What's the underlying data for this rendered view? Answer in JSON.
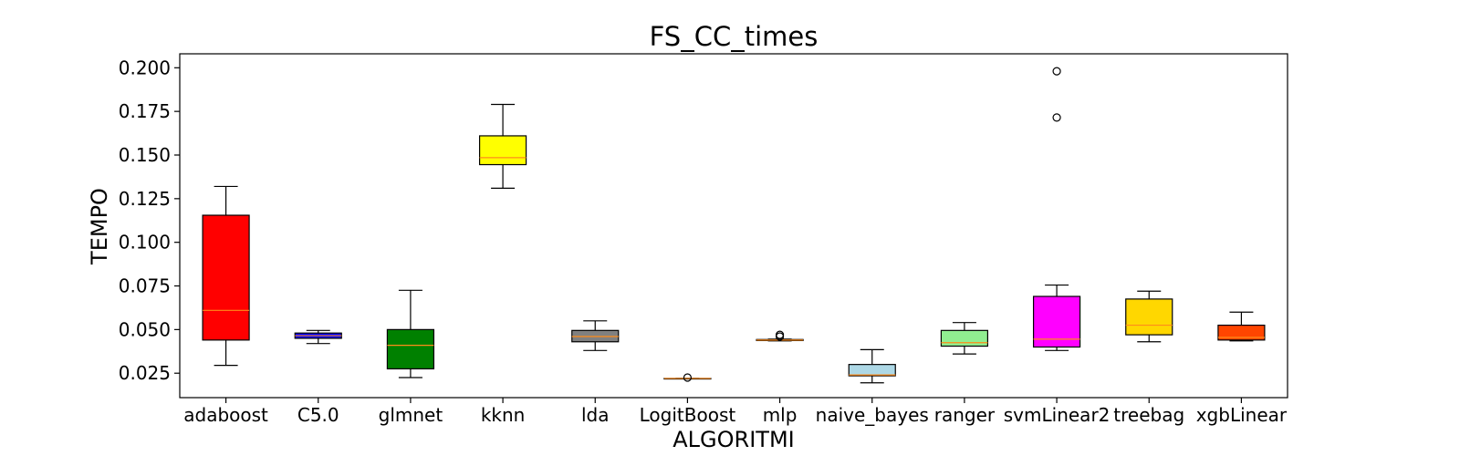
{
  "chart_data": {
    "type": "boxplot",
    "title": "FS_CC_times",
    "xlabel": "ALGORITMI",
    "ylabel": "TEMPO",
    "ylim": [
      0.011,
      0.208
    ],
    "yticks": [
      "0.025",
      "0.050",
      "0.075",
      "0.100",
      "0.125",
      "0.150",
      "0.175",
      "0.200"
    ],
    "grid": false,
    "median_color": "#ff8c1a",
    "categories": [
      "adaboost",
      "C5.0",
      "glmnet",
      "kknn",
      "lda",
      "LogitBoost",
      "mlp",
      "naive_bayes",
      "ranger",
      "svmLinear2",
      "treebag",
      "xgbLinear"
    ],
    "boxes": [
      {
        "name": "adaboost",
        "color": "#ff0000",
        "whisker_low": 0.0295,
        "q1": 0.044,
        "median": 0.061,
        "q3": 0.1155,
        "whisker_high": 0.132,
        "outliers": []
      },
      {
        "name": "C5.0",
        "color": "#0000ff",
        "whisker_low": 0.042,
        "q1": 0.045,
        "median": 0.0465,
        "q3": 0.048,
        "whisker_high": 0.0495,
        "outliers": []
      },
      {
        "name": "glmnet",
        "color": "#008000",
        "whisker_low": 0.0225,
        "q1": 0.0275,
        "median": 0.041,
        "q3": 0.05,
        "whisker_high": 0.0725,
        "outliers": []
      },
      {
        "name": "kknn",
        "color": "#ffff00",
        "whisker_low": 0.131,
        "q1": 0.1445,
        "median": 0.1485,
        "q3": 0.161,
        "whisker_high": 0.179,
        "outliers": []
      },
      {
        "name": "lda",
        "color": "#808080",
        "whisker_low": 0.038,
        "q1": 0.043,
        "median": 0.046,
        "q3": 0.0495,
        "whisker_high": 0.055,
        "outliers": []
      },
      {
        "name": "LogitBoost",
        "color": "#f08080",
        "whisker_low": 0.022,
        "q1": 0.022,
        "median": 0.022,
        "q3": 0.022,
        "whisker_high": 0.022,
        "outliers": [
          0.0225
        ]
      },
      {
        "name": "mlp",
        "color": "#800080",
        "whisker_low": 0.0435,
        "q1": 0.0437,
        "median": 0.044,
        "q3": 0.0443,
        "whisker_high": 0.0445,
        "outliers": [
          0.046,
          0.047
        ]
      },
      {
        "name": "naive_bayes",
        "color": "#add8e6",
        "whisker_low": 0.0195,
        "q1": 0.0235,
        "median": 0.024,
        "q3": 0.03,
        "whisker_high": 0.0385,
        "outliers": []
      },
      {
        "name": "ranger",
        "color": "#90ee90",
        "whisker_low": 0.036,
        "q1": 0.0405,
        "median": 0.0425,
        "q3": 0.0495,
        "whisker_high": 0.054,
        "outliers": []
      },
      {
        "name": "svmLinear2",
        "color": "#ff00ff",
        "whisker_low": 0.038,
        "q1": 0.04,
        "median": 0.0445,
        "q3": 0.069,
        "whisker_high": 0.0755,
        "outliers": [
          0.1715,
          0.198
        ]
      },
      {
        "name": "treebag",
        "color": "#ffd700",
        "whisker_low": 0.043,
        "q1": 0.047,
        "median": 0.0525,
        "q3": 0.0675,
        "whisker_high": 0.072,
        "outliers": []
      },
      {
        "name": "xgbLinear",
        "color": "#ff4500",
        "whisker_low": 0.0435,
        "q1": 0.044,
        "median": 0.0455,
        "q3": 0.0525,
        "whisker_high": 0.06,
        "outliers": []
      }
    ]
  }
}
